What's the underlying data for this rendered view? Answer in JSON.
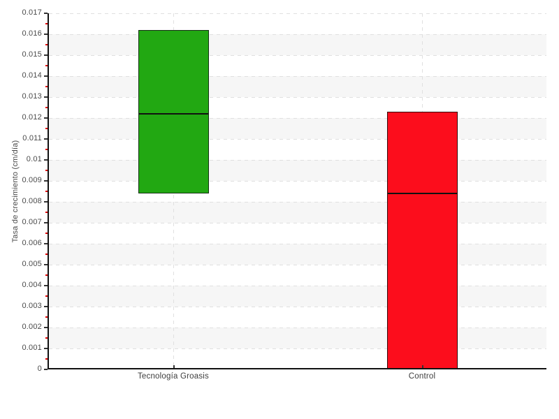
{
  "figure": {
    "background": "#ffffff"
  },
  "chart_data": {
    "type": "bar",
    "subtype": "floating-range-bars-with-inner-mean-line",
    "title": "",
    "xlabel": "",
    "ylabel": "Tasa de crecimiento (cm/día)",
    "categories": [
      "Tecnología Groasis",
      "Control"
    ],
    "series": [
      {
        "name": "Tecnología Groasis",
        "low": 0.0084,
        "high": 0.0162,
        "inner_line": 0.0122,
        "fill": "#22a812",
        "border": "#143014"
      },
      {
        "name": "Control",
        "low": 0,
        "high": 0.0123,
        "inner_line": 0.0084,
        "fill": "#fc0d1c",
        "border": "#330a0a"
      }
    ],
    "ylim": [
      0,
      0.017
    ],
    "ytick_step": 0.001,
    "yminortick_step": 0.0005,
    "ytick_labels": [
      "0",
      "0.001",
      "0.002",
      "0.003",
      "0.004",
      "0.005",
      "0.006",
      "0.007",
      "0.008",
      "0.009",
      "0.01",
      "0.011",
      "0.012",
      "0.013",
      "0.014",
      "0.015",
      "0.016",
      "0.017"
    ],
    "grid": "dashed horizontal lines at every major y tick; dashed vertical line at each category center; alternating white/gray horizontal bands",
    "legend": "none",
    "style": {
      "band_color": "#f6f6f6",
      "grid_color": "#e0e0e0",
      "axis_color": "#111111",
      "major_tick_color": "#333333",
      "minor_tick_color": "#dd0000",
      "label_color": "#4a4a4a",
      "inner_line_color": "#111111"
    }
  }
}
